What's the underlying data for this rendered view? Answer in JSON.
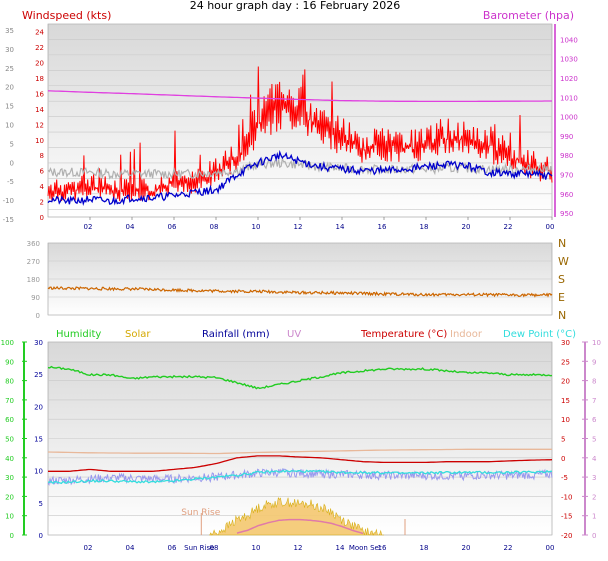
{
  "header": {
    "title": "24 hour graph day : 16 February 2026"
  },
  "colors": {
    "wind_axis": "#cc0000",
    "baro_axis": "#cc33cc",
    "wind_speed": "#ff0000",
    "wind_avg": "#0000cc",
    "wind_gust_grey": "#b0b0b0",
    "barometer": "#e040e0",
    "wind_dir": "#cc6600",
    "dir_labels": "#996600",
    "humidity": "#22cc22",
    "solar": "#d4a800",
    "rainfall": "#000099",
    "uv": "#cc88cc",
    "temperature": "#cc0000",
    "indoor": "#e8b89a",
    "dew_point": "#33dddd",
    "dew_band": "#9999ee",
    "solar_fill": "#f5c870",
    "sunrise": "#e0a080"
  },
  "chart_data": [
    {
      "type": "line",
      "id": "wind",
      "axes_labels": {
        "left": "Windspeed (kts)",
        "right": "Barometer (hpa)"
      },
      "x_ticks": [
        "02",
        "04",
        "06",
        "08",
        "10",
        "12",
        "14",
        "16",
        "18",
        "20",
        "22",
        "00"
      ],
      "y_left_ticks": [
        24,
        22,
        20,
        18,
        16,
        14,
        12,
        10,
        8,
        6,
        4,
        2,
        0
      ],
      "y_outer_ticks": [
        35,
        30,
        25,
        20,
        15,
        10,
        5,
        0,
        -5,
        -10,
        -15
      ],
      "y_right_ticks": [
        1040,
        1030,
        1020,
        1010,
        1000,
        990,
        980,
        970,
        960,
        950
      ],
      "ylim_left": [
        0,
        25
      ],
      "ylim_right": [
        948,
        1048
      ],
      "xlim_hours": [
        0,
        24
      ],
      "series": [
        {
          "key": "gust",
          "hours": [
            0,
            1,
            2,
            3,
            4,
            5,
            6,
            7,
            8,
            9,
            10,
            11,
            12,
            13,
            14,
            15,
            16,
            17,
            18,
            19,
            20,
            21,
            22,
            23,
            24
          ],
          "values": [
            5,
            5,
            6,
            5,
            5,
            5,
            6,
            6,
            8,
            10,
            15,
            18,
            17,
            14,
            13,
            11,
            12,
            11,
            12,
            13,
            12,
            12,
            10,
            9,
            8
          ]
        },
        {
          "key": "speed_spread",
          "hours": [
            0,
            1,
            2,
            3,
            4,
            5,
            6,
            7,
            8,
            9,
            10,
            11,
            12,
            13,
            14,
            15,
            16,
            17,
            18,
            19,
            20,
            21,
            22,
            23,
            24
          ],
          "values": [
            2,
            2,
            2,
            2,
            2,
            2,
            3,
            3,
            4,
            6,
            9,
            11,
            11,
            9,
            8,
            7,
            7,
            7,
            7,
            8,
            8,
            7,
            6,
            5,
            4
          ]
        },
        {
          "key": "wind_avg",
          "hours": [
            0,
            1,
            2,
            3,
            4,
            5,
            6,
            7,
            8,
            9,
            10,
            11,
            12,
            13,
            14,
            15,
            16,
            17,
            18,
            19,
            20,
            21,
            22,
            23,
            24
          ],
          "values": [
            2.3,
            2,
            2.3,
            2,
            2.5,
            2.5,
            2.8,
            3.2,
            3.5,
            5.5,
            7,
            8,
            7.2,
            6.5,
            6.2,
            6,
            6,
            6.2,
            6.5,
            6.8,
            6.6,
            5.8,
            5.6,
            5.6,
            5.2
          ]
        },
        {
          "key": "wind_grey",
          "hours": [
            0,
            1,
            2,
            3,
            4,
            5,
            6,
            7,
            8,
            9,
            10,
            11,
            12,
            13,
            14,
            15,
            16,
            17,
            18,
            19,
            20,
            21,
            22,
            23,
            24
          ],
          "values": [
            5.8,
            5.8,
            5.8,
            5.6,
            5.6,
            5.6,
            5.6,
            5.6,
            5.8,
            6,
            6.8,
            7,
            6.8,
            6.5,
            6.3,
            6.2,
            6.1,
            6.2,
            6.2,
            6.3,
            6.3,
            6.2,
            6.2,
            6.2,
            6.3
          ]
        },
        {
          "key": "barometer",
          "hours": [
            0,
            2,
            4,
            6,
            8,
            10,
            12,
            14,
            16,
            18,
            20,
            22,
            24
          ],
          "values": [
            1013.4,
            1012.6,
            1011.9,
            1011.1,
            1010.3,
            1009.6,
            1008.9,
            1008.3,
            1008.0,
            1007.9,
            1007.9,
            1008.0,
            1008.1
          ]
        }
      ]
    },
    {
      "type": "line",
      "id": "wind_direction",
      "y_left_ticks": [
        360,
        270,
        180,
        90,
        0
      ],
      "y_right_labels": [
        "N",
        "W",
        "S",
        "E",
        "N"
      ],
      "ylim": [
        0,
        360
      ],
      "series": [
        {
          "key": "direction",
          "hours": [
            0,
            2,
            4,
            6,
            8,
            10,
            12,
            14,
            16,
            18,
            20,
            22,
            24
          ],
          "values": [
            135,
            132,
            130,
            125,
            120,
            118,
            112,
            110,
            105,
            102,
            102,
            100,
            100
          ]
        }
      ]
    },
    {
      "type": "line",
      "id": "climate",
      "legend": [
        "Humidity",
        "Solar",
        "Rainfall (mm)",
        "UV",
        "Temperature (°C)",
        "Indoor",
        "Dew Point (°C)"
      ],
      "x_ticks": [
        "02",
        "04",
        "06",
        "Sun Rise",
        "08",
        "10",
        "12",
        "14",
        "Moon Set",
        "16",
        "18",
        "20",
        "22",
        "00"
      ],
      "y_humidity_ticks": [
        100,
        90,
        80,
        70,
        60,
        50,
        40,
        30,
        20,
        10,
        0
      ],
      "y_rain_ticks": [
        30,
        25,
        20,
        15,
        10,
        5,
        0
      ],
      "y_temp_ticks": [
        30,
        25,
        20,
        15,
        10,
        5,
        0,
        -5,
        -10,
        -15,
        -20
      ],
      "y_uv_ticks": [
        10,
        9,
        8,
        7,
        6,
        5,
        4,
        3,
        2,
        1,
        0
      ],
      "annotations": {
        "sun_rise": "Sun Rise"
      },
      "ylim_temp": [
        -20,
        30
      ],
      "series": [
        {
          "key": "humidity_temp_scale",
          "hours": [
            0,
            1,
            2,
            3,
            4,
            5,
            6,
            7,
            8,
            9,
            10,
            11,
            12,
            13,
            14,
            15,
            16,
            17,
            18,
            19,
            20,
            21,
            22,
            23,
            24
          ],
          "values": [
            23.5,
            23,
            21.5,
            21.5,
            20.5,
            21,
            21,
            21,
            20.8,
            19.5,
            18,
            19,
            20,
            21,
            22,
            22.5,
            23,
            23,
            23,
            22.5,
            22,
            22,
            21.5,
            21.5,
            21.5
          ]
        },
        {
          "key": "indoor",
          "hours": [
            0,
            2,
            4,
            6,
            8,
            10,
            12,
            14,
            16,
            18,
            20,
            22,
            24
          ],
          "values": [
            1.5,
            1.3,
            1.2,
            1.2,
            1.1,
            1.4,
            1.6,
            1.8,
            2.0,
            2.1,
            2.2,
            2.2,
            2.2
          ]
        },
        {
          "key": "temperature",
          "hours": [
            0,
            1,
            2,
            3,
            4,
            5,
            6,
            7,
            8,
            9,
            10,
            11,
            12,
            13,
            14,
            15,
            16,
            17,
            18,
            19,
            20,
            21,
            22,
            23,
            24
          ],
          "values": [
            -3.5,
            -3.5,
            -3,
            -3.5,
            -3.5,
            -3.5,
            -3,
            -2.5,
            -1.5,
            0,
            0.5,
            0.5,
            0.2,
            0,
            -0.5,
            -1,
            -1.2,
            -1.2,
            -1.2,
            -1,
            -1,
            -1,
            -0.8,
            -0.6,
            -0.5
          ]
        },
        {
          "key": "dew_point",
          "hours": [
            0,
            1,
            2,
            3,
            4,
            5,
            6,
            7,
            8,
            9,
            10,
            11,
            12,
            13,
            14,
            15,
            16,
            17,
            18,
            19,
            20,
            21,
            22,
            23,
            24
          ],
          "values": [
            -6.5,
            -6.3,
            -6,
            -6,
            -6.2,
            -6.3,
            -6,
            -5.5,
            -5,
            -4.5,
            -3.8,
            -3.5,
            -3.5,
            -3.6,
            -3.8,
            -3.8,
            -3.9,
            -4,
            -3.9,
            -3.8,
            -3.8,
            -3.8,
            -3.8,
            -3.7,
            -3.5
          ]
        },
        {
          "key": "dew_band",
          "hours": [
            0,
            1,
            2,
            3,
            4,
            5,
            6,
            7,
            8,
            9,
            10,
            11,
            12,
            13,
            14,
            15,
            16,
            17,
            18,
            19,
            20,
            21,
            22,
            23,
            24
          ],
          "values": [
            -6,
            -5.8,
            -5.5,
            -5.2,
            -5.3,
            -5.5,
            -5.5,
            -5.2,
            -5,
            -4.5,
            -4,
            -3.8,
            -4,
            -4.2,
            -4.3,
            -4.4,
            -4.6,
            -4.6,
            -4.6,
            -4.7,
            -4.6,
            -4.5,
            -4.6,
            -4.4,
            -4.3
          ]
        },
        {
          "key": "solar_fill",
          "hours": [
            7.7,
            8,
            8.5,
            9,
            9.5,
            10,
            10.5,
            11,
            11.5,
            12,
            12.5,
            13,
            13.5,
            14,
            14.5,
            15,
            15.5,
            16
          ],
          "values": [
            -20,
            -19.5,
            -18,
            -16,
            -15,
            -13,
            -12,
            -11.5,
            -11.5,
            -12,
            -12,
            -13,
            -14,
            -16,
            -17.5,
            -19,
            -19.8,
            -20
          ]
        },
        {
          "key": "uv",
          "hours": [
            9,
            9.5,
            10,
            10.5,
            11,
            11.5,
            12,
            12.5,
            13,
            13.5,
            14,
            14.5,
            15
          ],
          "values": [
            -19.5,
            -18.8,
            -17.6,
            -16.8,
            -16.2,
            -16,
            -16,
            -16.2,
            -16.5,
            -17,
            -17.8,
            -18.8,
            -19.6
          ]
        }
      ]
    }
  ]
}
